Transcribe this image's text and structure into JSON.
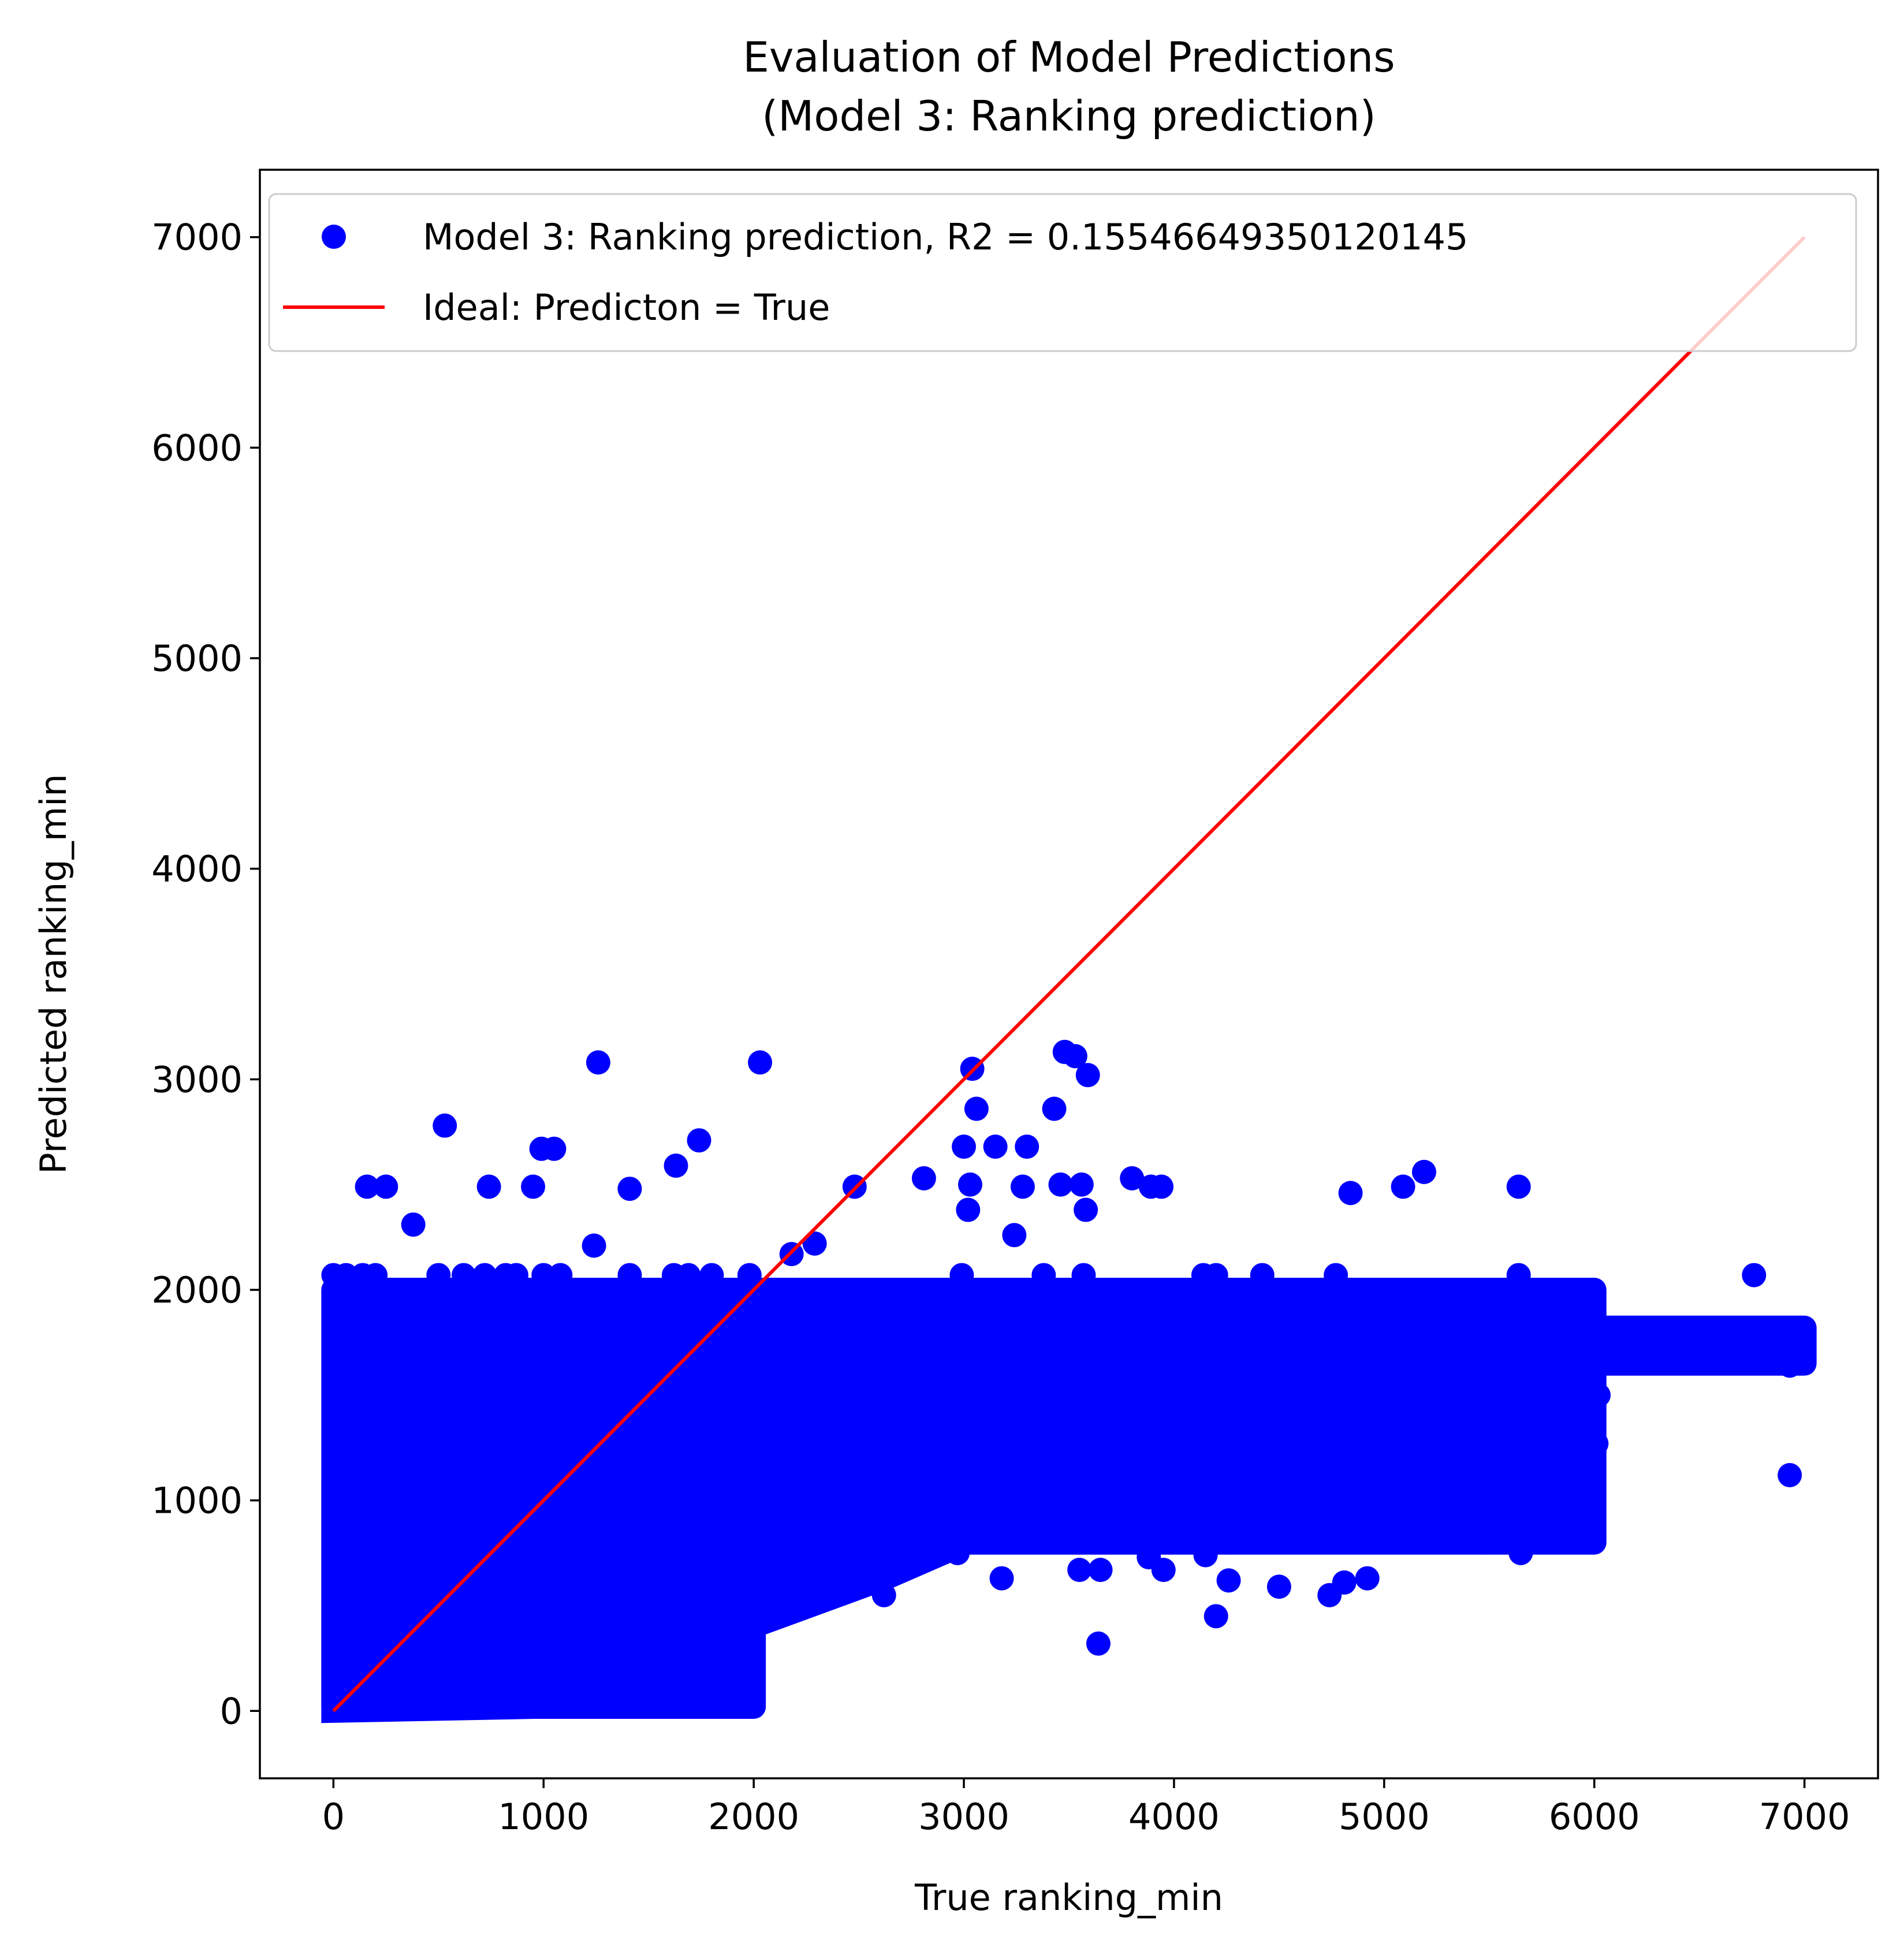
{
  "chart_data": {
    "type": "scatter",
    "title_lines": [
      "Evaluation of Model Predictions",
      "(Model 3: Ranking prediction)"
    ],
    "xlabel": "True ranking_min",
    "ylabel": "Predicted ranking_min",
    "xlim": [
      -350,
      7350
    ],
    "ylim": [
      -320,
      7320
    ],
    "xticks": [
      0,
      1000,
      2000,
      3000,
      4000,
      5000,
      6000,
      7000
    ],
    "yticks": [
      0,
      1000,
      2000,
      3000,
      4000,
      5000,
      6000,
      7000
    ],
    "grid": false,
    "legend": {
      "placement": "upper-left",
      "entries": [
        {
          "label": "Model 3: Ranking prediction, R2 = 0.15546649350120145",
          "kind": "scatter",
          "color": "#0000ff"
        },
        {
          "label": "Ideal: Predicton = True",
          "kind": "line",
          "color": "#ff0000"
        }
      ]
    },
    "series": [
      {
        "kind": "scatter",
        "color": "#0000ff",
        "dense_bands": [
          {
            "x": [
              0,
              2000
            ],
            "y": [
              20,
              2000
            ]
          },
          {
            "x": [
              2000,
              6000
            ],
            "y": [
              800,
              2000
            ]
          },
          {
            "x": [
              6000,
              7000
            ],
            "y": [
              1650,
              1820
            ]
          }
        ],
        "points": [
          [
            0,
            2070
          ],
          [
            60,
            2070
          ],
          [
            140,
            2070
          ],
          [
            200,
            2070
          ],
          [
            500,
            2070
          ],
          [
            620,
            2070
          ],
          [
            720,
            2070
          ],
          [
            820,
            2070
          ],
          [
            870,
            2070
          ],
          [
            1000,
            2070
          ],
          [
            1080,
            2070
          ],
          [
            1410,
            2070
          ],
          [
            1620,
            2070
          ],
          [
            1690,
            2070
          ],
          [
            1800,
            2070
          ],
          [
            1980,
            2070
          ],
          [
            2990,
            2070
          ],
          [
            3380,
            2070
          ],
          [
            3570,
            2070
          ],
          [
            4140,
            2070
          ],
          [
            4200,
            2070
          ],
          [
            4420,
            2070
          ],
          [
            4770,
            2070
          ],
          [
            5640,
            2070
          ],
          [
            6760,
            2070
          ],
          [
            1260,
            3080
          ],
          [
            2030,
            3080
          ],
          [
            3040,
            3050
          ],
          [
            3480,
            3130
          ],
          [
            3530,
            3110
          ],
          [
            3590,
            3020
          ],
          [
            3060,
            2860
          ],
          [
            3430,
            2860
          ],
          [
            530,
            2780
          ],
          [
            990,
            2670
          ],
          [
            1050,
            2670
          ],
          [
            1740,
            2710
          ],
          [
            3000,
            2680
          ],
          [
            3150,
            2680
          ],
          [
            3300,
            2680
          ],
          [
            1630,
            2590
          ],
          [
            2810,
            2530
          ],
          [
            5190,
            2560
          ],
          [
            160,
            2490
          ],
          [
            250,
            2490
          ],
          [
            740,
            2490
          ],
          [
            950,
            2490
          ],
          [
            1410,
            2480
          ],
          [
            2480,
            2490
          ],
          [
            3030,
            2500
          ],
          [
            3280,
            2490
          ],
          [
            3460,
            2500
          ],
          [
            3560,
            2500
          ],
          [
            3800,
            2530
          ],
          [
            3890,
            2490
          ],
          [
            3940,
            2490
          ],
          [
            4840,
            2460
          ],
          [
            5090,
            2490
          ],
          [
            5640,
            2490
          ],
          [
            3020,
            2380
          ],
          [
            3580,
            2380
          ],
          [
            380,
            2310
          ],
          [
            1240,
            2210
          ],
          [
            2180,
            2170
          ],
          [
            2290,
            2220
          ],
          [
            3240,
            2260
          ],
          [
            5460,
            800
          ],
          [
            5650,
            750
          ],
          [
            6930,
            1120
          ],
          [
            4500,
            590
          ],
          [
            4740,
            550
          ],
          [
            4810,
            610
          ],
          [
            4920,
            630
          ],
          [
            4200,
            450
          ],
          [
            4260,
            620
          ],
          [
            4250,
            800
          ],
          [
            4800,
            870
          ],
          [
            3180,
            630
          ],
          [
            3550,
            670
          ],
          [
            3650,
            670
          ],
          [
            3640,
            320
          ],
          [
            3950,
            670
          ],
          [
            3880,
            730
          ],
          [
            4150,
            740
          ],
          [
            3430,
            830
          ],
          [
            3920,
            800
          ],
          [
            3610,
            830
          ],
          [
            2620,
            550
          ],
          [
            2270,
            510
          ],
          [
            2100,
            460
          ],
          [
            1940,
            350
          ],
          [
            1810,
            270
          ],
          [
            1460,
            210
          ],
          [
            1300,
            200
          ],
          [
            1130,
            120
          ],
          [
            870,
            170
          ],
          [
            640,
            100
          ],
          [
            380,
            60
          ],
          [
            50,
            30
          ],
          [
            2500,
            690
          ],
          [
            2760,
            740
          ],
          [
            2970,
            750
          ],
          [
            5080,
            1030
          ],
          [
            5320,
            1030
          ],
          [
            5460,
            1030
          ],
          [
            5880,
            1030
          ],
          [
            5760,
            1270
          ],
          [
            6010,
            1270
          ],
          [
            6020,
            1500
          ],
          [
            6930,
            1640
          ],
          [
            7000,
            1800
          ]
        ]
      },
      {
        "kind": "line",
        "color": "#ff0000",
        "x": [
          0,
          7000
        ],
        "y": [
          0,
          7000
        ]
      }
    ]
  }
}
